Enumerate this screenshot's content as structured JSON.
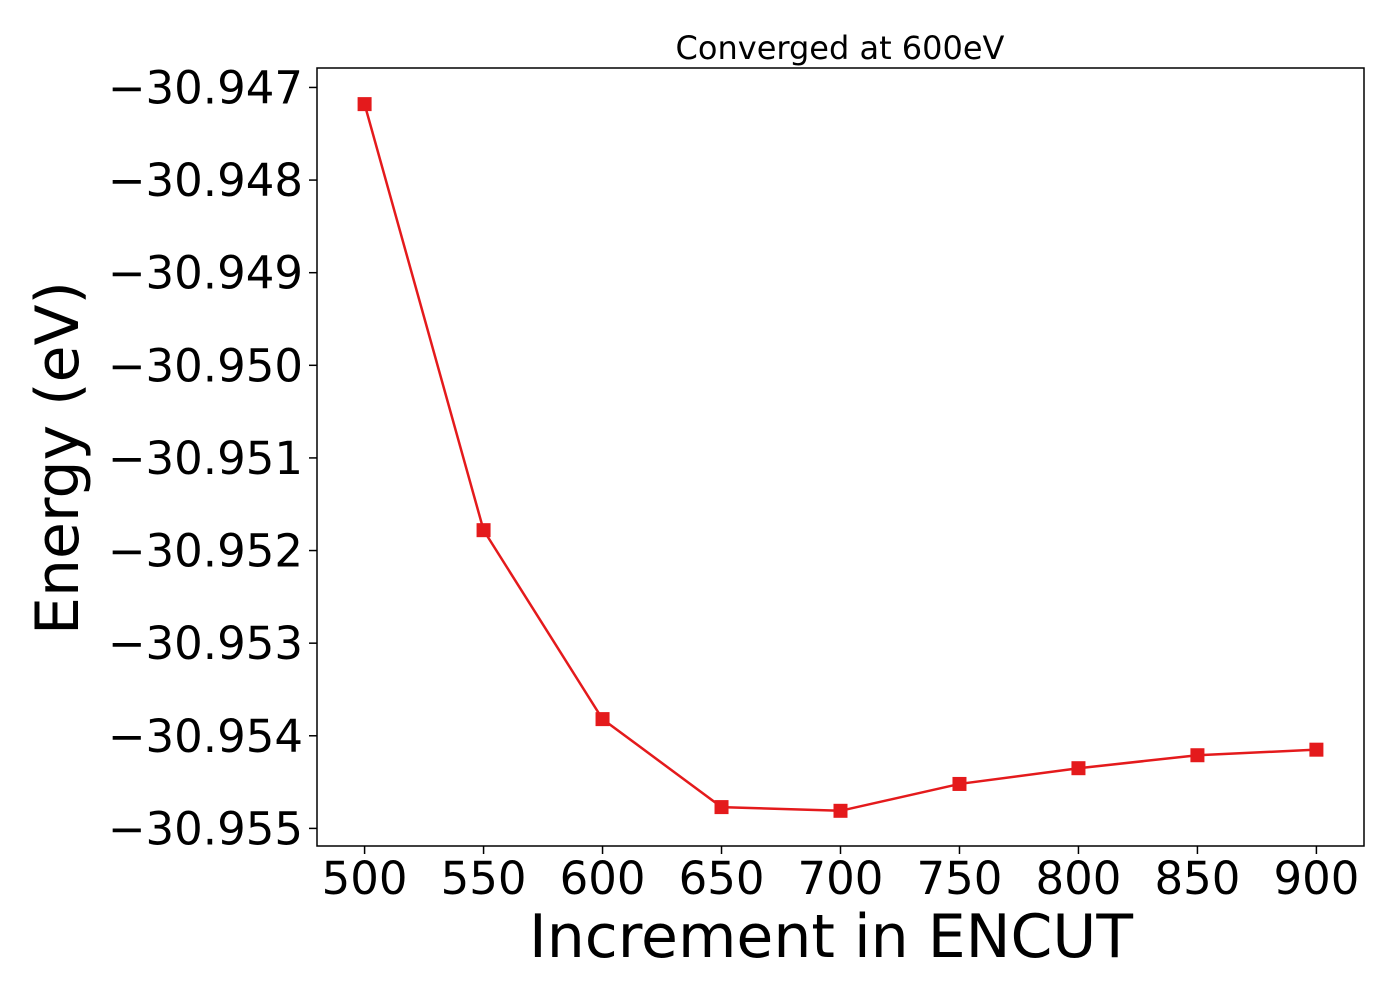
{
  "chart_data": {
    "type": "line",
    "title": "Converged at 600eV",
    "xlabel": "Increment in ENCUT",
    "ylabel": "Energy (eV)",
    "x": [
      500,
      550,
      600,
      650,
      700,
      750,
      800,
      850,
      900
    ],
    "series": [
      {
        "values": [
          -30.94718,
          -30.95178,
          -30.95382,
          -30.95477,
          -30.95481,
          -30.95452,
          -30.95435,
          -30.95421,
          -30.95415
        ],
        "color": "#e41a1c",
        "marker": "square"
      }
    ],
    "xlim": [
      480,
      920
    ],
    "ylim": [
      -30.95519,
      -30.94679
    ],
    "xticks": [
      500,
      550,
      600,
      650,
      700,
      750,
      800,
      850,
      900
    ],
    "yticks": [
      -30.947,
      -30.948,
      -30.949,
      -30.95,
      -30.951,
      -30.952,
      -30.953,
      -30.954,
      -30.955
    ],
    "ytick_labels": [
      "−30.947",
      "−30.948",
      "−30.949",
      "−30.950",
      "−30.951",
      "−30.952",
      "−30.953",
      "−30.954",
      "−30.955"
    ],
    "grid": false,
    "legend": "none"
  }
}
